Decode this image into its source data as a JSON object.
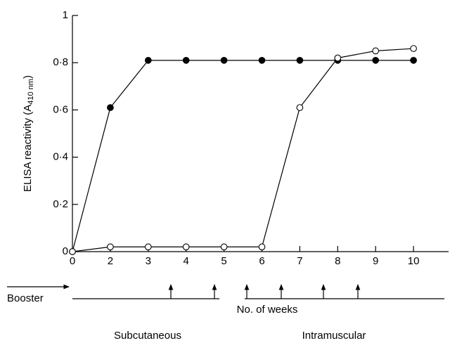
{
  "chart_data": {
    "type": "line",
    "y_label": "ELISA reactivity (A",
    "y_label_sub": "410 nm",
    "y_label_end": ")",
    "categories": [
      "0",
      "2",
      "3",
      "4",
      "5",
      "6",
      "7",
      "8",
      "9",
      "10"
    ],
    "series": [
      {
        "marker": "filled",
        "color": "#000000",
        "values": [
          0,
          0.61,
          0.81,
          0.81,
          0.81,
          0.81,
          0.81,
          0.81,
          0.81,
          0.81
        ]
      },
      {
        "marker": "open",
        "color": "#000000",
        "values": [
          0,
          0.02,
          0.02,
          0.02,
          0.02,
          0.02,
          0.61,
          0.82,
          0.85,
          0.86
        ]
      }
    ],
    "ylim": [
      0,
      1
    ],
    "yticks": [
      0,
      {
        "value": 0.2,
        "label": "0·2"
      },
      {
        "value": 0.4,
        "label": "0·4"
      },
      {
        "value": 0.6,
        "label": "0·6"
      },
      {
        "value": 0.8,
        "label": "0·8"
      },
      1
    ],
    "annotations": {
      "booster": "Booster",
      "weeks": "No. of weeks",
      "subcutaneous": "Subcutaneous",
      "intramuscular": "Intramuscular"
    }
  }
}
